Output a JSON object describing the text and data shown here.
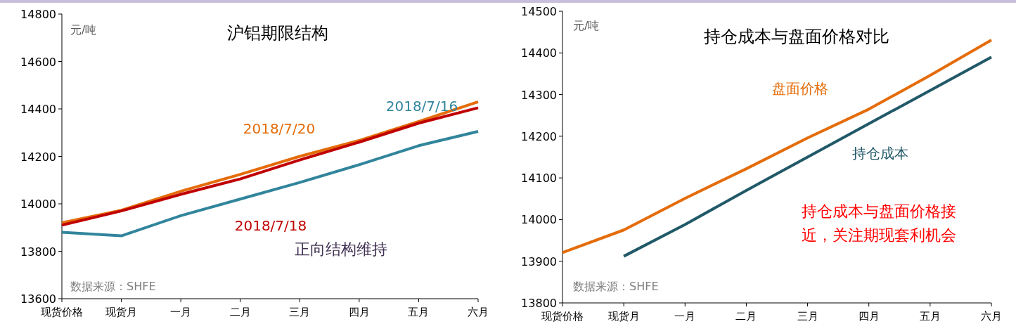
{
  "chart_data": [
    {
      "type": "line",
      "title": "沪铝期限结构",
      "ylabel": "元/吨",
      "categories": [
        "现货价格",
        "现货月",
        "一月",
        "二月",
        "三月",
        "四月",
        "五月",
        "六月"
      ],
      "ylim": [
        13600,
        14800
      ],
      "yticks": [
        13600,
        13800,
        14000,
        14200,
        14400,
        14600,
        14800
      ],
      "grid": false,
      "series": [
        {
          "name": "2018/7/20",
          "color": "#e46c0a",
          "values": [
            13920,
            13973,
            14053,
            14124,
            14200,
            14267,
            14347,
            14430
          ]
        },
        {
          "name": "2018/7/18",
          "color": "#c00000",
          "values": [
            13910,
            13970,
            14040,
            14105,
            14185,
            14260,
            14340,
            14405
          ]
        },
        {
          "name": "2018/7/16",
          "color": "#31859c",
          "values": [
            13880,
            13865,
            13950,
            14020,
            14090,
            14165,
            14245,
            14305
          ]
        }
      ],
      "annotations": [
        "正向结构维持",
        "数据来源：SHFE"
      ]
    },
    {
      "type": "line",
      "title": "持仓成本与盘面价格对比",
      "ylabel": "元/吨",
      "categories": [
        "现货价格",
        "现货月",
        "一月",
        "二月",
        "三月",
        "四月",
        "五月",
        "六月"
      ],
      "ylim": [
        13800,
        14500
      ],
      "yticks": [
        13800,
        13900,
        14000,
        14100,
        14200,
        14300,
        14400,
        14500
      ],
      "grid": false,
      "series": [
        {
          "name": "盘面价格",
          "color": "#e46c0a",
          "values": [
            13921,
            13975,
            14051,
            14122,
            14196,
            14265,
            14346,
            14431
          ]
        },
        {
          "name": "持仓成本",
          "color": "#215968",
          "values": [
            null,
            13912,
            13988,
            14070,
            14150,
            14230,
            14310,
            14390
          ]
        }
      ],
      "annotations": [
        "持仓成本与盘面价格接近，关注期现套利机会",
        "数据来源：SHFE"
      ]
    }
  ]
}
